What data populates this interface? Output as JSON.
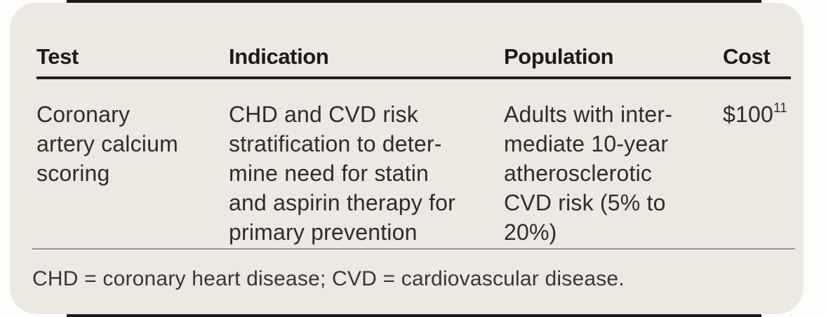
{
  "table": {
    "columns": [
      "Test",
      "Indication",
      "Population",
      "Cost"
    ],
    "row": {
      "test_lines": [
        "Coronary",
        "artery calcium",
        "scoring"
      ],
      "indication_lines": [
        "CHD and CVD risk",
        "stratification to deter-",
        "mine need for statin",
        "and aspirin therapy for",
        "primary prevention"
      ],
      "population_lines": [
        "Adults with inter-",
        "mediate 10-year",
        "atherosclerotic",
        "CVD risk (5% to",
        "20%)"
      ],
      "cost_value": "$100",
      "cost_reference": "11"
    },
    "footnote": "CHD = coronary heart disease; CVD = cardiovascular disease."
  },
  "colors": {
    "card_background": "#ece9e2",
    "page_background": "#fdfdfb",
    "header_rule": "#1e1e1c",
    "body_text": "#2e2d2a",
    "divider_gray": "#96928a",
    "edge_bar": "#1b1b19"
  }
}
